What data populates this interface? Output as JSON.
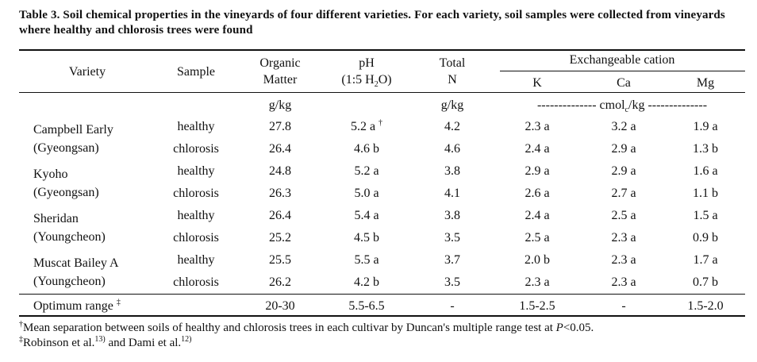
{
  "caption": "Table 3. Soil chemical properties in the vineyards of four different varieties. For each variety, soil samples were collected from vineyards where healthy and chlorosis trees were found",
  "headers": {
    "variety": "Variety",
    "sample": "Sample",
    "organic_matter_1": "Organic",
    "organic_matter_2": "Matter",
    "ph_1": "pH",
    "ph_2a": "(1:5 H",
    "ph_2b": "2",
    "ph_2c": "O)",
    "total_n_1": "Total",
    "total_n_2": "N",
    "exchangeable": "Exchangeable cation",
    "k": "K",
    "ca": "Ca",
    "mg": "Mg"
  },
  "units": {
    "organic": "g/kg",
    "total_n": "g/kg",
    "cation_prefix": "-------------- cmol",
    "cation_sub": "c",
    "cation_suffix": "/kg --------------"
  },
  "groups": [
    {
      "variety_line1": "Campbell Early",
      "variety_line2": "(Gyeongsan)",
      "rows": [
        {
          "sample": "healthy",
          "om": "27.8",
          "ph": "5.2 a",
          "ph_mark": "†",
          "n": "4.2",
          "k": "2.3 a",
          "ca": "3.2 a",
          "mg": "1.9 a"
        },
        {
          "sample": "chlorosis",
          "om": "26.4",
          "ph": "4.6 b",
          "ph_mark": "",
          "n": "4.6",
          "k": "2.4 a",
          "ca": "2.9 a",
          "mg": "1.3 b"
        }
      ]
    },
    {
      "variety_line1": "Kyoho",
      "variety_line2": "(Gyeongsan)",
      "rows": [
        {
          "sample": "healthy",
          "om": "24.8",
          "ph": "5.2 a",
          "ph_mark": "",
          "n": "3.8",
          "k": "2.9 a",
          "ca": "2.9 a",
          "mg": "1.6 a"
        },
        {
          "sample": "chlorosis",
          "om": "26.3",
          "ph": "5.0 a",
          "ph_mark": "",
          "n": "4.1",
          "k": "2.6 a",
          "ca": "2.7 a",
          "mg": "1.1 b"
        }
      ]
    },
    {
      "variety_line1": "Sheridan",
      "variety_line2": "(Youngcheon)",
      "rows": [
        {
          "sample": "healthy",
          "om": "26.4",
          "ph": "5.4 a",
          "ph_mark": "",
          "n": "3.8",
          "k": "2.4 a",
          "ca": "2.5 a",
          "mg": "1.5 a"
        },
        {
          "sample": "chlorosis",
          "om": "25.2",
          "ph": "4.5 b",
          "ph_mark": "",
          "n": "3.5",
          "k": "2.5 a",
          "ca": "2.3 a",
          "mg": "0.9 b"
        }
      ]
    },
    {
      "variety_line1": "Muscat Bailey A",
      "variety_line2": "(Youngcheon)",
      "rows": [
        {
          "sample": "healthy",
          "om": "25.5",
          "ph": "5.5 a",
          "ph_mark": "",
          "n": "3.7",
          "k": "2.0 b",
          "ca": "2.3 a",
          "mg": "1.7 a"
        },
        {
          "sample": "chlorosis",
          "om": "26.2",
          "ph": "4.2 b",
          "ph_mark": "",
          "n": "3.5",
          "k": "2.3 a",
          "ca": "2.3 a",
          "mg": "0.7 b"
        }
      ]
    }
  ],
  "optimum": {
    "label": "Optimum range",
    "mark": "‡",
    "om": "20-30",
    "ph": "5.5-6.5",
    "n": "-",
    "k": "1.5-2.5",
    "ca": "-",
    "mg": "1.5-2.0"
  },
  "footnotes": {
    "f1_mark": "†",
    "f1_text_a": "Mean separation between soils of healthy and chlorosis trees in each cultivar by Duncan's multiple range test at ",
    "f1_p": "P",
    "f1_text_b": "<0.05.",
    "f2_mark": "‡",
    "f2_text_a": "Robinson et al.",
    "f2_ref1": "13)",
    "f2_text_b": " and Dami et al.",
    "f2_ref2": "12)"
  }
}
